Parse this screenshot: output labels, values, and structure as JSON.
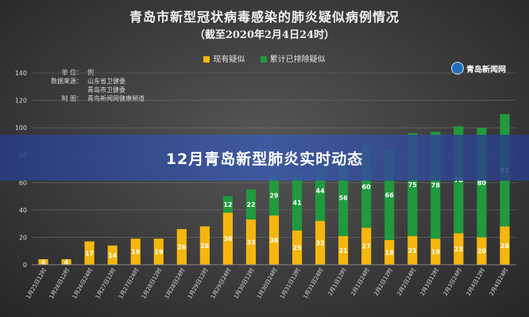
{
  "chart_data": {
    "type": "bar",
    "stacked": true,
    "title": "青岛市新型冠状病毒感染的肺炎疑似病例情况",
    "subtitle": "（截至2020年2月4日24时）",
    "categories": [
      "1月25日12时",
      "1月26日12时",
      "1月26日24时",
      "1月27日12时",
      "1月27日24时",
      "1月28日12时",
      "1月28日24时",
      "1月29日12时",
      "1月29日24时",
      "1月30日12时",
      "1月30日24时",
      "1月31日12时",
      "1月31日24时",
      "2月1日12时",
      "2月1日24时",
      "2月2日12时",
      "2月2日24时",
      "2月3日12时",
      "2月3日24时",
      "2月4日12时",
      "2月4日24时"
    ],
    "series": [
      {
        "name": "现有疑似",
        "color": "#f5b60e",
        "values": [
          4,
          4,
          17,
          14,
          19,
          19,
          26,
          28,
          38,
          33,
          36,
          25,
          32,
          21,
          27,
          18,
          21,
          19,
          23,
          20,
          28
        ]
      },
      {
        "name": "累计已排除疑似",
        "color": "#1f9a3c",
        "values": [
          0,
          0,
          0,
          0,
          0,
          0,
          0,
          0,
          12,
          22,
          29,
          41,
          44,
          56,
          60,
          66,
          75,
          78,
          78,
          80,
          82
        ]
      }
    ],
    "ylim": [
      0,
      140
    ],
    "yticks": [
      0,
      20,
      40,
      60,
      80,
      100,
      120,
      140
    ],
    "grid": true,
    "legend_position": "top-center"
  },
  "info": [
    {
      "key": "单    位：",
      "value": "例"
    },
    {
      "key": "数据来源：",
      "value": "山东省卫健委"
    },
    {
      "key": "",
      "value": "青岛市卫健委"
    },
    {
      "key": "制    图：",
      "value": "青岛新闻网健康频道"
    }
  ],
  "logo_text": "青岛新闻网",
  "banner_text": "12月青岛新型肺炎实时动态"
}
